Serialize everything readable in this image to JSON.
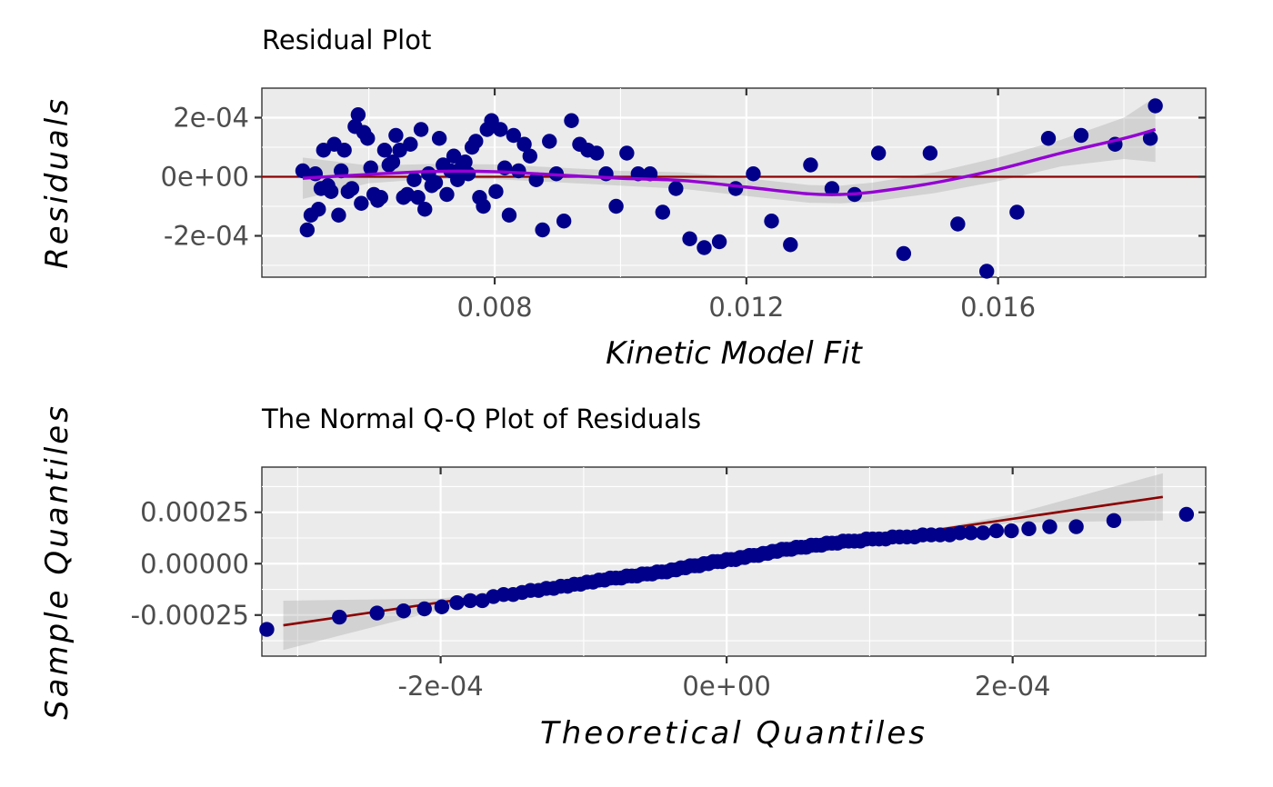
{
  "chart_data": [
    {
      "type": "scatter",
      "title": "Residual Plot",
      "xlabel": "Kinetic Model Fit",
      "ylabel": "Residuals",
      "xlim": [
        0.0043,
        0.0193
      ],
      "ylim": [
        -0.00034,
        0.0003
      ],
      "x_ticks": [
        0.008,
        0.012,
        0.016
      ],
      "x_tick_labels": [
        "0.008",
        "0.012",
        "0.016"
      ],
      "y_ticks": [
        -0.0002,
        0.0,
        0.0002
      ],
      "y_tick_labels": [
        "-2e-04",
        "0e+00",
        "2e-04"
      ],
      "grid": true,
      "point_color": "#00008b",
      "smooth_color": "#9400d3",
      "hline_color": "#8b0000",
      "hline_y": 0,
      "points": [
        [
          0.00495,
          2e-05
        ],
        [
          0.00502,
          -0.00018
        ],
        [
          0.00508,
          -0.00013
        ],
        [
          0.00515,
          1e-05
        ],
        [
          0.0052,
          -0.00011
        ],
        [
          0.00524,
          -4e-05
        ],
        [
          0.00528,
          9e-05
        ],
        [
          0.00535,
          -3e-05
        ],
        [
          0.0054,
          -5e-05
        ],
        [
          0.00545,
          0.00011
        ],
        [
          0.00552,
          -0.00013
        ],
        [
          0.00556,
          2e-05
        ],
        [
          0.00561,
          9e-05
        ],
        [
          0.00567,
          -5e-05
        ],
        [
          0.00573,
          -4e-05
        ],
        [
          0.00578,
          0.00017
        ],
        [
          0.00583,
          0.00021
        ],
        [
          0.00588,
          -9e-05
        ],
        [
          0.00592,
          0.00015
        ],
        [
          0.00598,
          0.00013
        ],
        [
          0.00603,
          3e-05
        ],
        [
          0.00608,
          -6e-05
        ],
        [
          0.00614,
          -8e-05
        ],
        [
          0.00619,
          -7e-05
        ],
        [
          0.00625,
          9e-05
        ],
        [
          0.00632,
          4e-05
        ],
        [
          0.00638,
          5e-05
        ],
        [
          0.00643,
          0.00014
        ],
        [
          0.00649,
          9e-05
        ],
        [
          0.00655,
          -7e-05
        ],
        [
          0.00661,
          -6e-05
        ],
        [
          0.00666,
          0.00011
        ],
        [
          0.00672,
          -1e-05
        ],
        [
          0.00678,
          -7e-05
        ],
        [
          0.00683,
          0.00016
        ],
        [
          0.00689,
          -0.00011
        ],
        [
          0.00695,
          1e-05
        ],
        [
          0.007,
          -3e-05
        ],
        [
          0.00706,
          -2e-05
        ],
        [
          0.00712,
          0.00013
        ],
        [
          0.00718,
          4e-05
        ],
        [
          0.00724,
          -6e-05
        ],
        [
          0.0073,
          2e-05
        ],
        [
          0.00735,
          7e-05
        ],
        [
          0.00741,
          -1e-05
        ],
        [
          0.00747,
          3e-05
        ],
        [
          0.00753,
          5e-05
        ],
        [
          0.00758,
          1e-05
        ],
        [
          0.00764,
          0.0001
        ],
        [
          0.0077,
          0.00012
        ],
        [
          0.00776,
          -7e-05
        ],
        [
          0.00782,
          -0.0001
        ],
        [
          0.00788,
          0.00016
        ],
        [
          0.00795,
          0.00019
        ],
        [
          0.00802,
          -5e-05
        ],
        [
          0.00809,
          0.00016
        ],
        [
          0.00816,
          3e-05
        ],
        [
          0.00823,
          -0.00013
        ],
        [
          0.0083,
          0.00014
        ],
        [
          0.00838,
          2e-05
        ],
        [
          0.00847,
          0.00011
        ],
        [
          0.00856,
          7e-05
        ],
        [
          0.00866,
          -1e-05
        ],
        [
          0.00876,
          -0.00018
        ],
        [
          0.00887,
          0.00012
        ],
        [
          0.00898,
          1e-05
        ],
        [
          0.0091,
          -0.00015
        ],
        [
          0.00922,
          0.00019
        ],
        [
          0.00935,
          0.00011
        ],
        [
          0.00948,
          9e-05
        ],
        [
          0.00962,
          8e-05
        ],
        [
          0.00977,
          1e-05
        ],
        [
          0.00993,
          -0.0001
        ],
        [
          0.0101,
          8e-05
        ],
        [
          0.01028,
          1e-05
        ],
        [
          0.01047,
          1e-05
        ],
        [
          0.01067,
          -0.00012
        ],
        [
          0.01088,
          -4e-05
        ],
        [
          0.0111,
          -0.00021
        ],
        [
          0.01133,
          -0.00024
        ],
        [
          0.01157,
          -0.00022
        ],
        [
          0.01183,
          -4e-05
        ],
        [
          0.01211,
          1e-05
        ],
        [
          0.0124,
          -0.00015
        ],
        [
          0.0127,
          -0.00023
        ],
        [
          0.01302,
          4e-05
        ],
        [
          0.01336,
          -4e-05
        ],
        [
          0.01372,
          -6e-05
        ],
        [
          0.0141,
          8e-05
        ],
        [
          0.0145,
          -0.00026
        ],
        [
          0.01492,
          8e-05
        ],
        [
          0.01536,
          -0.00016
        ],
        [
          0.01582,
          -0.00032
        ],
        [
          0.0163,
          -0.00012
        ],
        [
          0.0168,
          0.00013
        ],
        [
          0.01732,
          0.00014
        ],
        [
          0.01786,
          0.00011
        ],
        [
          0.01842,
          0.00013
        ],
        [
          0.0185,
          0.00024
        ]
      ],
      "smooth": [
        [
          0.00495,
          -5e-06
        ],
        [
          0.006,
          8e-06
        ],
        [
          0.007,
          1.8e-05
        ],
        [
          0.008,
          1.7e-05
        ],
        [
          0.009,
          6e-06
        ],
        [
          0.01,
          -5e-06
        ],
        [
          0.011,
          -1.3e-05
        ],
        [
          0.012,
          -3.5e-05
        ],
        [
          0.013,
          -5.8e-05
        ],
        [
          0.0135,
          -6e-05
        ],
        [
          0.014,
          -5.2e-05
        ],
        [
          0.015,
          -2e-05
        ],
        [
          0.016,
          2.5e-05
        ],
        [
          0.017,
          8e-05
        ],
        [
          0.018,
          0.00013
        ],
        [
          0.0185,
          0.00016
        ]
      ],
      "smooth_band_halfwidth": [
        7e-05,
        3e-05,
        2.5e-05,
        2.5e-05,
        2.5e-05,
        2.5e-05,
        2.8e-05,
        3e-05,
        3e-05,
        3e-05,
        3.2e-05,
        3.5e-05,
        4e-05,
        4.5e-05,
        7e-05,
        0.00011
      ]
    },
    {
      "type": "scatter",
      "title": "The Normal Q-Q Plot of Residuals",
      "xlabel": "Theoretical Quantiles",
      "ylabel": "Sample Quantiles",
      "xlim": [
        -0.000325,
        0.000335
      ],
      "ylim": [
        -0.00045,
        0.00047
      ],
      "x_ticks": [
        -0.0002,
        0.0,
        0.0002
      ],
      "x_tick_labels": [
        "-2e-04",
        "0e+00",
        "2e-04"
      ],
      "y_ticks": [
        -0.00025,
        0.0,
        0.00025
      ],
      "y_tick_labels": [
        "-0.00025",
        "0.00000",
        "0.00025"
      ],
      "grid": true,
      "point_color": "#00008b",
      "line_color": "#8b0000",
      "qq_line": [
        [
          -0.00031,
          -0.0003
        ],
        [
          0.000305,
          0.000325
        ]
      ],
      "qq_band": [
        [
          -0.00031,
          -0.00018,
          -0.00042
        ],
        [
          -0.0002,
          -0.00017,
          -0.000225
        ],
        [
          -0.0001,
          -8e-05,
          -0.000115
        ],
        [
          0.0,
          1e-05,
          -1e-05
        ],
        [
          0.0001,
          0.00011,
          9e-05
        ],
        [
          0.0002,
          0.00024,
          0.0002
        ],
        [
          0.000305,
          0.00044,
          0.00021
        ]
      ],
      "n_points": 99,
      "sorted_residuals": [
        -0.00032,
        -0.00026,
        -0.00024,
        -0.00023,
        -0.00022,
        -0.00021,
        -0.00019,
        -0.00018,
        -0.00018,
        -0.00016,
        -0.00015,
        -0.00015,
        -0.00014,
        -0.00013,
        -0.00013,
        -0.00012,
        -0.00012,
        -0.00011,
        -0.00011,
        -0.0001,
        -0.0001,
        -9e-05,
        -9e-05,
        -8e-05,
        -8e-05,
        -7e-05,
        -7e-05,
        -7e-05,
        -6e-05,
        -6e-05,
        -6e-05,
        -5e-05,
        -5e-05,
        -5e-05,
        -4e-05,
        -4e-05,
        -4e-05,
        -3e-05,
        -3e-05,
        -2e-05,
        -2e-05,
        -1e-05,
        -1e-05,
        -1e-05,
        0.0,
        0.0,
        1e-05,
        1e-05,
        1e-05,
        2e-05,
        2e-05,
        2e-05,
        3e-05,
        3e-05,
        4e-05,
        4e-05,
        4e-05,
        5e-05,
        5e-05,
        6e-05,
        6e-05,
        7e-05,
        7e-05,
        7e-05,
        8e-05,
        8e-05,
        8e-05,
        9e-05,
        9e-05,
        9e-05,
        0.0001,
        0.0001,
        0.0001,
        0.00011,
        0.00011,
        0.00011,
        0.00011,
        0.00012,
        0.00012,
        0.00012,
        0.00012,
        0.00013,
        0.00013,
        0.00013,
        0.00013,
        0.00014,
        0.00014,
        0.00014,
        0.00014,
        0.00015,
        0.00015,
        0.00015,
        0.00016,
        0.00016,
        0.00017,
        0.00018,
        0.00018,
        0.00021,
        0.00024
      ]
    }
  ]
}
